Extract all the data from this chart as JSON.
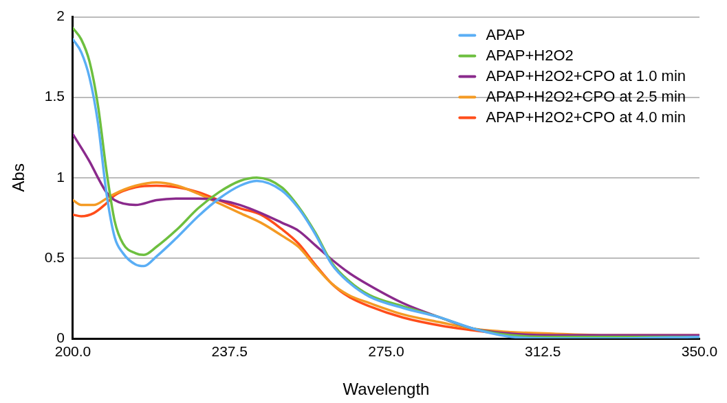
{
  "chart_data": {
    "type": "line",
    "xlabel": "Wavelength",
    "ylabel": "Abs",
    "xlim": [
      200,
      350
    ],
    "xticks": [
      {
        "value": 200,
        "label": "200.0"
      },
      {
        "value": 237.5,
        "label": "237.5"
      },
      {
        "value": 275,
        "label": "275.0"
      },
      {
        "value": 312.5,
        "label": "312.5"
      },
      {
        "value": 350,
        "label": "350.0"
      }
    ],
    "ylim": [
      0,
      2
    ],
    "yticks": [
      0,
      0.5,
      1,
      1.5,
      2
    ],
    "grid": "y",
    "legend": "top right",
    "marker": "none",
    "line_style": "solid",
    "series": [
      {
        "name": "APAP",
        "color": "#5aaef5",
        "x": [
          200,
          202,
          204,
          206,
          208,
          210,
          212,
          215,
          217,
          220,
          225,
          230,
          235,
          240,
          244,
          250,
          254,
          258,
          262,
          266,
          271,
          279,
          288,
          296,
          305,
          315,
          330,
          350
        ],
        "values": [
          1.86,
          1.78,
          1.62,
          1.34,
          0.91,
          0.63,
          0.53,
          0.46,
          0.45,
          0.51,
          0.63,
          0.76,
          0.87,
          0.95,
          0.98,
          0.92,
          0.81,
          0.65,
          0.46,
          0.35,
          0.26,
          0.19,
          0.13,
          0.06,
          0.01,
          0,
          0,
          0.01
        ]
      },
      {
        "name": "APAP+H2O2",
        "color": "#6dbf3f",
        "x": [
          200,
          202,
          204,
          206,
          208,
          210,
          212,
          215,
          217,
          220,
          225,
          230,
          235,
          240,
          244,
          250,
          254,
          258,
          262,
          266,
          271,
          279,
          288,
          296,
          305,
          315,
          330,
          350
        ],
        "values": [
          1.93,
          1.86,
          1.72,
          1.45,
          1.05,
          0.73,
          0.59,
          0.53,
          0.52,
          0.57,
          0.68,
          0.81,
          0.91,
          0.98,
          1.0,
          0.94,
          0.82,
          0.66,
          0.47,
          0.36,
          0.27,
          0.2,
          0.13,
          0.06,
          0.02,
          0.01,
          0.01,
          0.01
        ]
      },
      {
        "name": "APAP+H2O2+CPO at 1.0 min",
        "color": "#8a2a8c",
        "x": [
          200,
          204,
          206,
          208,
          210,
          215,
          220,
          225,
          230,
          235,
          240,
          245,
          250,
          254,
          258,
          262,
          266,
          271,
          279,
          288,
          296,
          305,
          315,
          330,
          350
        ],
        "values": [
          1.27,
          1.1,
          1.0,
          0.91,
          0.86,
          0.83,
          0.86,
          0.87,
          0.87,
          0.86,
          0.83,
          0.78,
          0.72,
          0.67,
          0.58,
          0.49,
          0.41,
          0.33,
          0.22,
          0.13,
          0.06,
          0.03,
          0.02,
          0.02,
          0.02
        ]
      },
      {
        "name": "APAP+H2O2+CPO at 2.5 min",
        "color": "#f49a23",
        "x": [
          200,
          202,
          205,
          208,
          210,
          215,
          220,
          225,
          230,
          235,
          240,
          245,
          250,
          254,
          258,
          262,
          266,
          271,
          279,
          288,
          296,
          305,
          315,
          330,
          350
        ],
        "values": [
          0.86,
          0.83,
          0.83,
          0.87,
          0.9,
          0.95,
          0.97,
          0.95,
          0.9,
          0.84,
          0.78,
          0.72,
          0.64,
          0.57,
          0.45,
          0.34,
          0.27,
          0.22,
          0.15,
          0.1,
          0.06,
          0.04,
          0.03,
          0.02,
          0.02
        ]
      },
      {
        "name": "APAP+H2O2+CPO at 4.0 min",
        "color": "#ff4d1a",
        "x": [
          200,
          202,
          205,
          208,
          210,
          215,
          220,
          225,
          230,
          235,
          240,
          245,
          250,
          254,
          258,
          262,
          266,
          271,
          279,
          288,
          296,
          305
        ],
        "values": [
          0.77,
          0.76,
          0.78,
          0.84,
          0.89,
          0.94,
          0.95,
          0.94,
          0.91,
          0.86,
          0.81,
          0.77,
          0.68,
          0.59,
          0.46,
          0.34,
          0.26,
          0.2,
          0.13,
          0.08,
          0.05,
          0.02
        ]
      }
    ]
  }
}
